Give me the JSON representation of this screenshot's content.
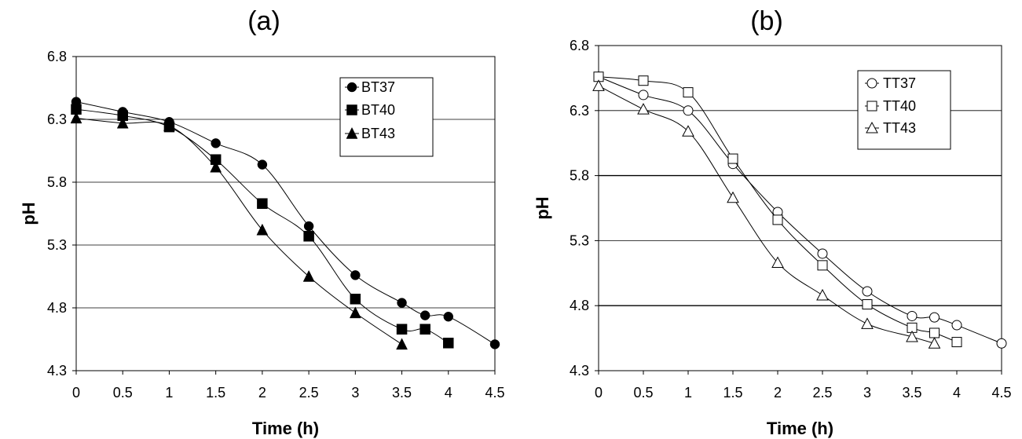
{
  "chart_data": [
    {
      "type": "line",
      "title": "(a)",
      "xlabel": "Time (h)",
      "ylabel": "pH",
      "xlim": [
        0,
        4.5
      ],
      "ylim": [
        4.3,
        6.8
      ],
      "xticks": [
        "0",
        "0.5",
        "1",
        "1.5",
        "2",
        "2.5",
        "3",
        "3.5",
        "4",
        "4.5"
      ],
      "yticks": [
        "4.3",
        "4.8",
        "5.3",
        "5.8",
        "6.3",
        "6.8"
      ],
      "grid": "horizontal",
      "legend_position": "top-right",
      "series": [
        {
          "name": "BT37",
          "marker": "filled-circle",
          "x": [
            0,
            0.5,
            1,
            1.5,
            2,
            2.5,
            3,
            3.5,
            3.75,
            4,
            4.5
          ],
          "y": [
            6.44,
            6.36,
            6.28,
            6.11,
            5.94,
            5.45,
            5.06,
            4.84,
            4.74,
            4.73,
            4.51
          ]
        },
        {
          "name": "BT40",
          "marker": "filled-square",
          "x": [
            0,
            0.5,
            1,
            1.5,
            2,
            2.5,
            3,
            3.5,
            3.75,
            4
          ],
          "y": [
            6.38,
            6.33,
            6.24,
            5.98,
            5.63,
            5.37,
            4.87,
            4.63,
            4.63,
            4.52
          ]
        },
        {
          "name": "BT43",
          "marker": "filled-triangle",
          "x": [
            0,
            0.5,
            1,
            1.5,
            2,
            2.5,
            3,
            3.5
          ],
          "y": [
            6.31,
            6.27,
            6.25,
            5.92,
            5.42,
            5.05,
            4.76,
            4.51
          ]
        }
      ]
    },
    {
      "type": "line",
      "title": "(b)",
      "xlabel": "Time (h)",
      "ylabel": "pH",
      "xlim": [
        0,
        4.5
      ],
      "ylim": [
        4.3,
        6.8
      ],
      "xticks": [
        "0",
        "0.5",
        "1",
        "1.5",
        "2",
        "2.5",
        "3",
        "3.5",
        "4",
        "4.5"
      ],
      "yticks": [
        "4.3",
        "4.8",
        "5.3",
        "5.8",
        "6.3",
        "6.8"
      ],
      "grid": "horizontal",
      "legend_position": "top-right",
      "series": [
        {
          "name": "TT37",
          "marker": "open-circle",
          "x": [
            0,
            0.5,
            1,
            1.5,
            2,
            2.5,
            3,
            3.5,
            3.75,
            4,
            4.5
          ],
          "y": [
            6.56,
            6.42,
            6.3,
            5.89,
            5.52,
            5.2,
            4.91,
            4.72,
            4.71,
            4.65,
            4.51
          ]
        },
        {
          "name": "TT40",
          "marker": "open-square",
          "x": [
            0,
            0.5,
            1,
            1.5,
            2,
            2.5,
            3,
            3.5,
            3.75,
            4
          ],
          "y": [
            6.56,
            6.53,
            6.44,
            5.93,
            5.46,
            5.11,
            4.81,
            4.63,
            4.59,
            4.52
          ]
        },
        {
          "name": "TT43",
          "marker": "open-triangle",
          "x": [
            0,
            0.5,
            1,
            1.5,
            2,
            2.5,
            3,
            3.5,
            3.75
          ],
          "y": [
            6.49,
            6.31,
            6.14,
            5.63,
            5.13,
            4.88,
            4.66,
            4.56,
            4.51
          ]
        }
      ]
    }
  ]
}
